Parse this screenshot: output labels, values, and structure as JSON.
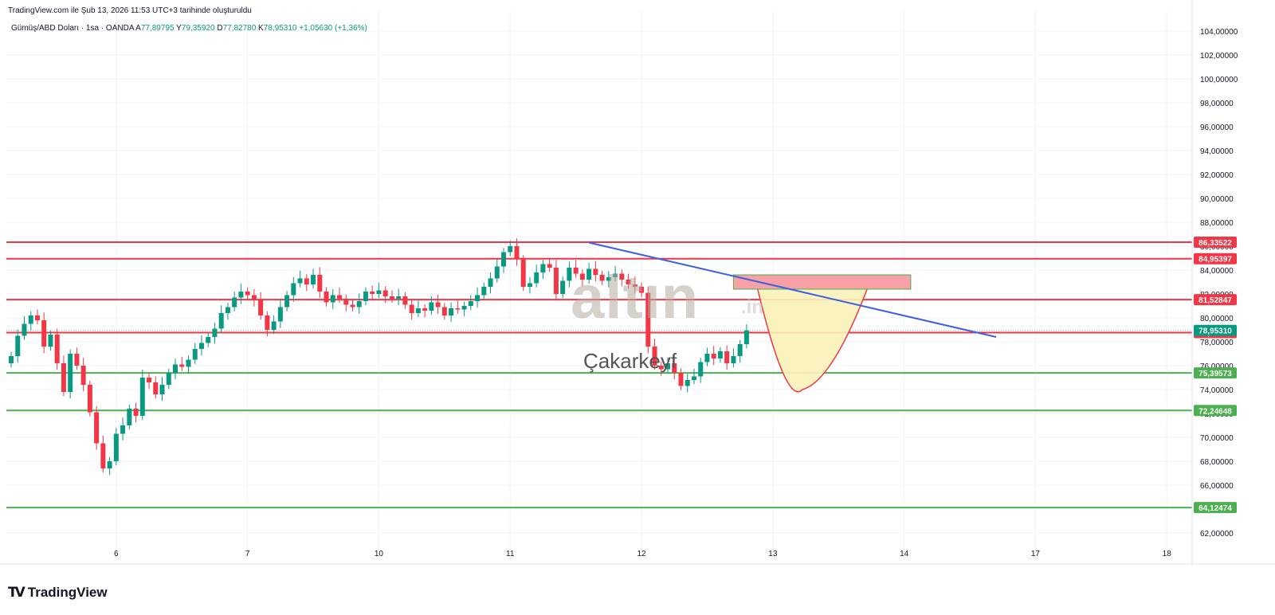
{
  "header": {
    "created_text": "TradingView.com ile Şub 13, 2026 11:53 UTC+3 tarihinde oluşturuldu",
    "symbol_text": "Gümüş/ABD Doları · 1sa · OANDA",
    "ohlc": [
      {
        "k": "A",
        "v": "77,89795"
      },
      {
        "k": "Y",
        "v": "79,35920"
      },
      {
        "k": "D",
        "v": "77,82780"
      },
      {
        "k": "K",
        "v": "78,95310"
      }
    ],
    "change_text": "+1,05630 (+1,36%)"
  },
  "footer": {
    "brand": "TradingView",
    "logo_mark": "TV"
  },
  "watermark": {
    "brand": "altın",
    "suffix": ".in",
    "author": "Çakarkeyf"
  },
  "colors": {
    "up": "#089981",
    "down": "#f23645",
    "resistance": "#f23645",
    "support": "#4caf50",
    "trend": "#3a5fe5",
    "zone": "#f7a1a6",
    "cup_fill": "#fbf2b8"
  },
  "chart_data": {
    "type": "candlestick",
    "title": "Gümüş/ABD Doları · 1sa · OANDA",
    "xlabel": "",
    "ylabel": "",
    "ylim": [
      61,
      105
    ],
    "y_ticks": [
      "62,00000",
      "64,00000",
      "66,00000",
      "68,00000",
      "70,00000",
      "72,00000",
      "74,00000",
      "76,00000",
      "78,00000",
      "80,00000",
      "82,00000",
      "84,00000",
      "86,00000",
      "88,00000",
      "90,00000",
      "92,00000",
      "94,00000",
      "96,00000",
      "98,00000",
      "100,00000",
      "102,00000",
      "104,00000"
    ],
    "x_ticks": [
      {
        "label": "6",
        "idx": 16
      },
      {
        "label": "7",
        "idx": 36
      },
      {
        "label": "10",
        "idx": 56
      },
      {
        "label": "11",
        "idx": 76
      },
      {
        "label": "12",
        "idx": 96
      },
      {
        "label": "13",
        "idx": 116
      },
      {
        "label": "14",
        "idx": 136
      },
      {
        "label": "17",
        "idx": 156
      },
      {
        "label": "18",
        "idx": 176
      }
    ],
    "closes": [
      76.8,
      78.5,
      79.5,
      80.2,
      79.8,
      77.6,
      78.6,
      76.2,
      73.8,
      77.0,
      76.0,
      74.4,
      72.1,
      69.5,
      67.4,
      68.0,
      70.3,
      71.0,
      72.4,
      71.8,
      75.0,
      74.6,
      73.6,
      74.4,
      75.4,
      76.1,
      75.9,
      76.5,
      77.4,
      77.9,
      78.4,
      79.1,
      80.4,
      80.9,
      81.7,
      82.2,
      81.9,
      81.5,
      80.2,
      79.0,
      79.7,
      80.9,
      81.9,
      82.9,
      83.3,
      82.8,
      83.6,
      82.2,
      81.3,
      81.9,
      81.6,
      81.1,
      80.9,
      81.4,
      82.2,
      82.0,
      82.3,
      81.8,
      81.6,
      81.8,
      81.1,
      80.4,
      80.8,
      80.6,
      81.3,
      80.9,
      80.2,
      80.8,
      80.7,
      81.0,
      81.4,
      81.9,
      82.6,
      83.3,
      84.3,
      85.5,
      86.0,
      84.9,
      82.6,
      82.9,
      83.8,
      84.5,
      84.2,
      82.0,
      83.1,
      84.2,
      83.7,
      83.2,
      84.1,
      83.6,
      83.1,
      83.4,
      83.7,
      83.2,
      82.8,
      82.6,
      82.1,
      77.6,
      76.0,
      75.7,
      76.2,
      75.4,
      74.3,
      74.8,
      75.1,
      76.3,
      77.0,
      76.6,
      77.2,
      76.2,
      76.8,
      77.8,
      78.95
    ],
    "series": [
      {
        "name": "86,33522",
        "type": "resistance",
        "value": 86.33522
      },
      {
        "name": "84,95397",
        "type": "resistance",
        "value": 84.95397
      },
      {
        "name": "81,52847",
        "type": "resistance",
        "value": 81.52847
      },
      {
        "name": "78,76598",
        "type": "resistance",
        "value": 78.76598
      },
      {
        "name": "75,39573",
        "type": "support",
        "value": 75.39573
      },
      {
        "name": "72,24648",
        "type": "support",
        "value": 72.24648
      },
      {
        "name": "64,12474",
        "type": "support",
        "value": 64.12474
      }
    ],
    "current_price": "78,95310",
    "current_value": 78.9531,
    "trendline": {
      "from_idx": 88,
      "from_value": 86.3,
      "to_idx": 150,
      "to_value": 78.4
    },
    "zone": {
      "from_idx": 110,
      "to_idx": 137,
      "low": 82.4,
      "high": 83.6
    },
    "grid": true,
    "legend": "none"
  }
}
